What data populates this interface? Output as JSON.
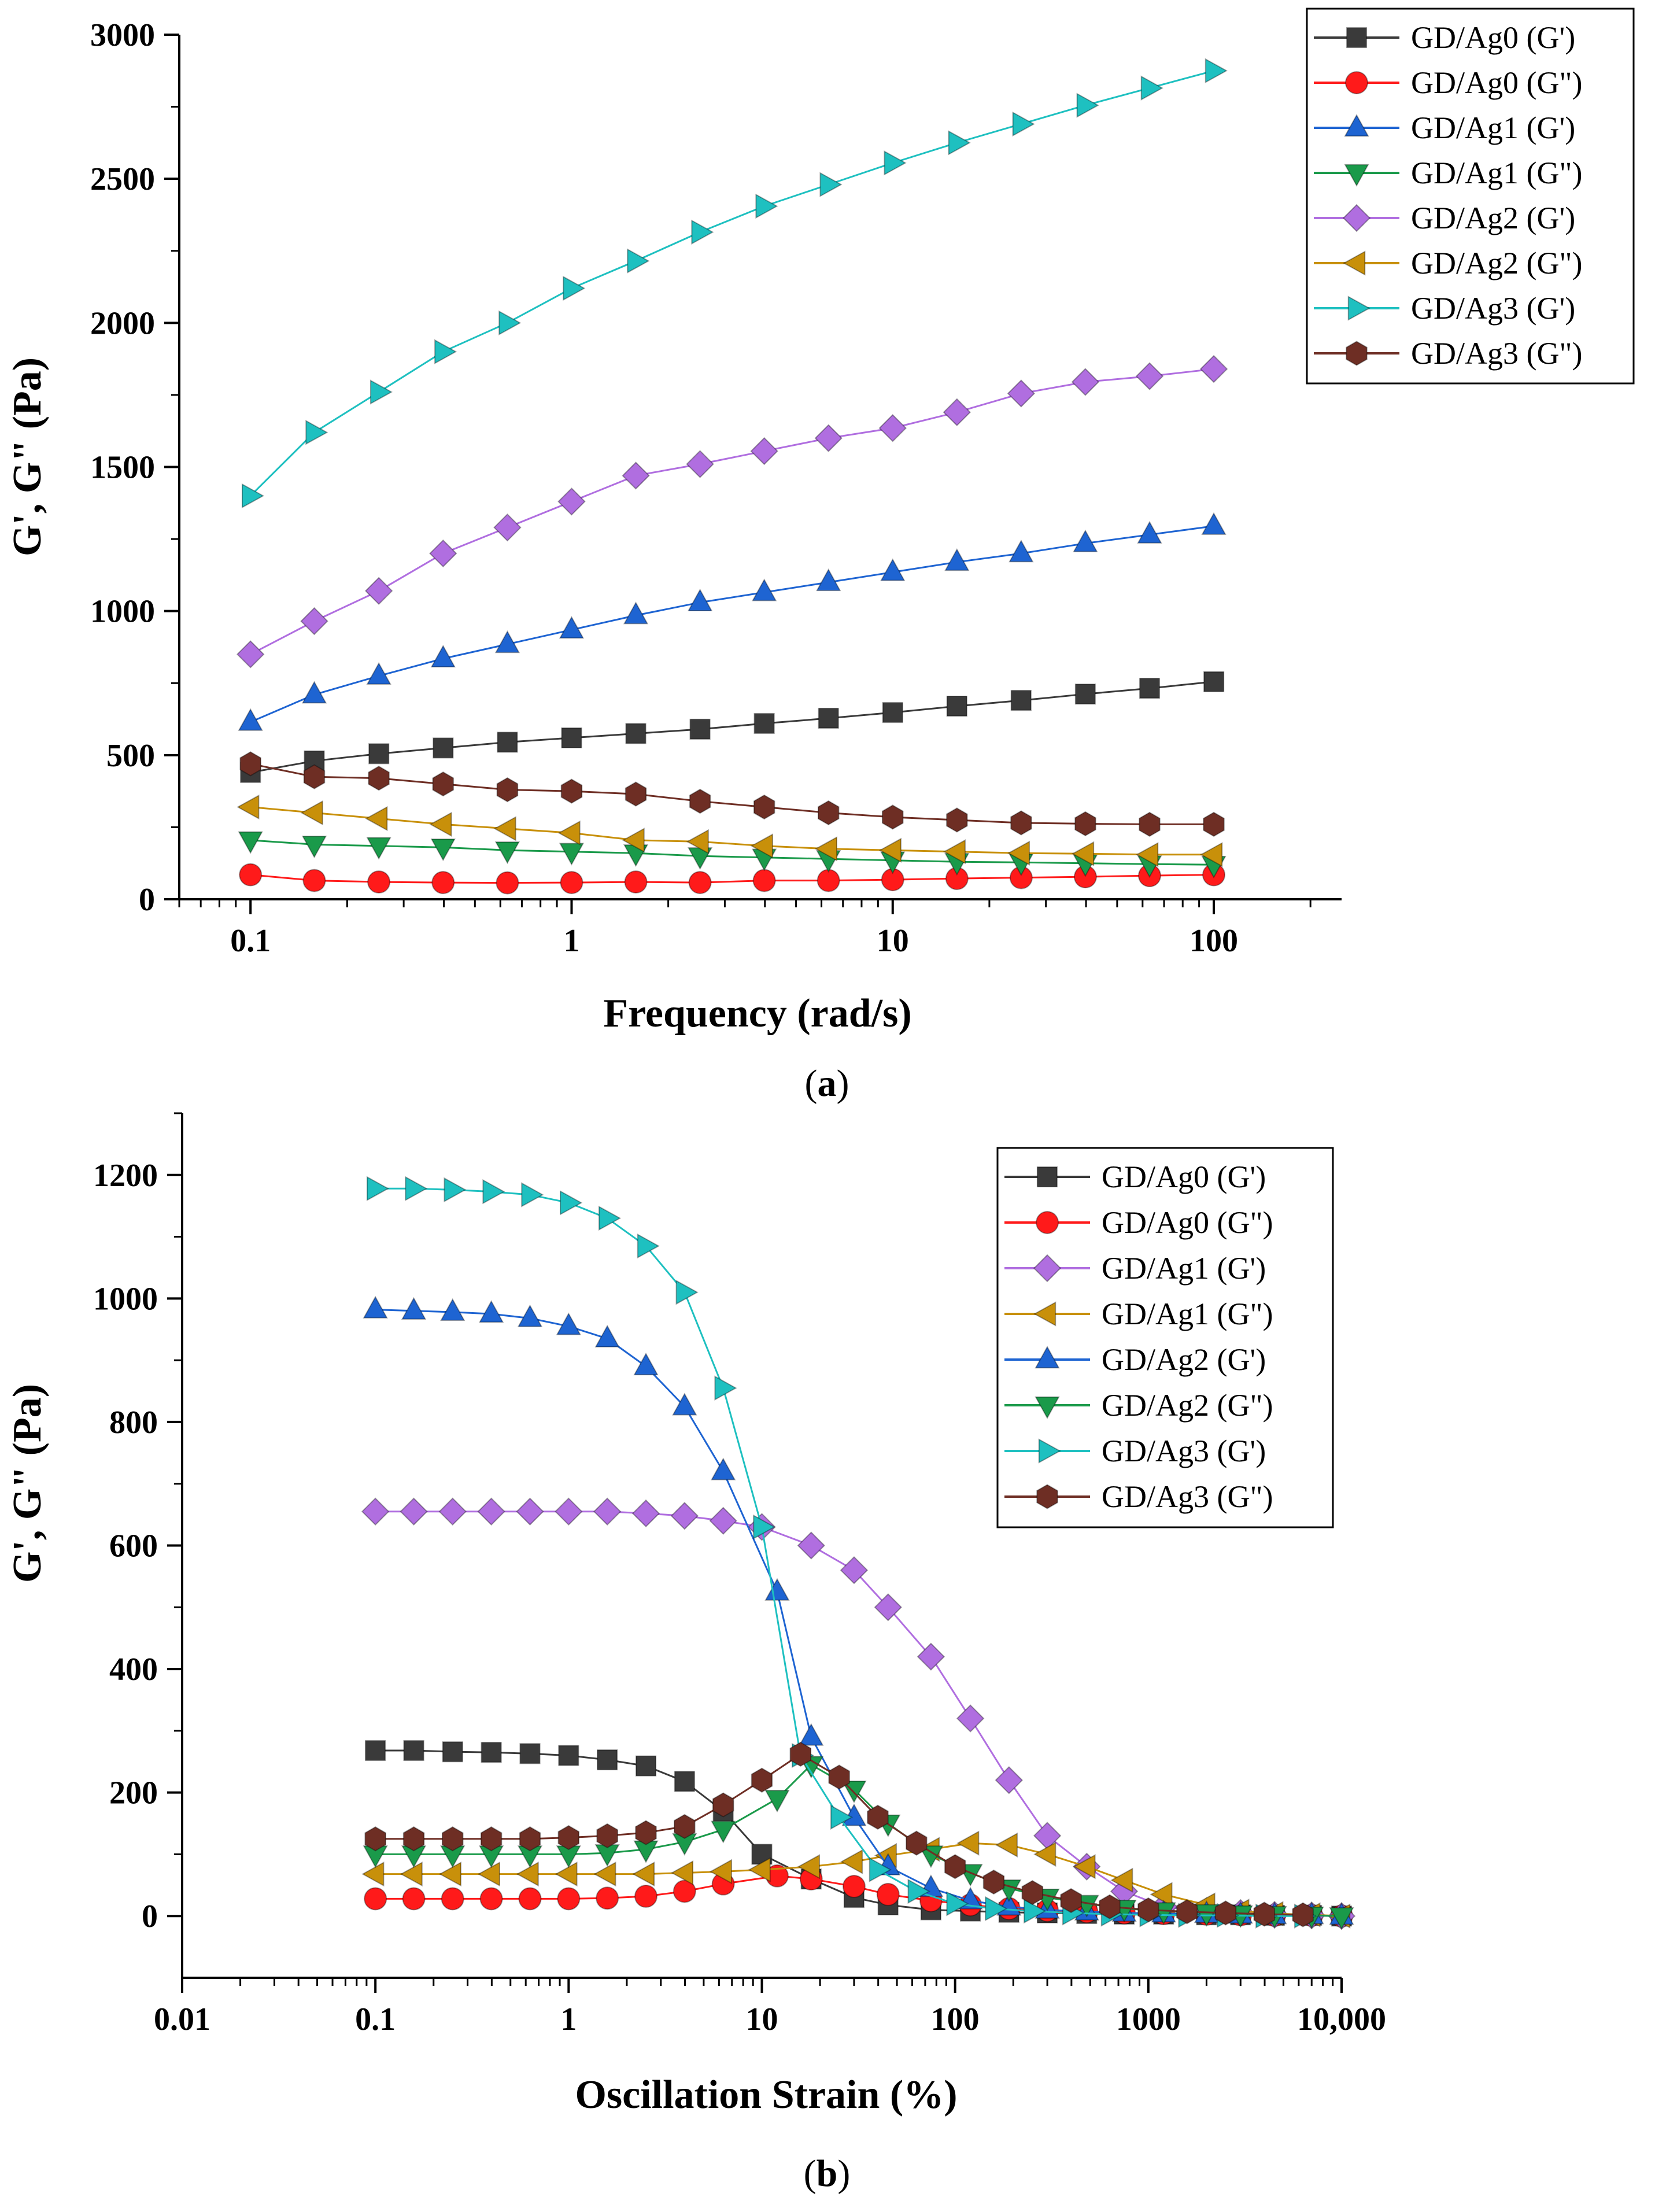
{
  "chart_data": [
    {
      "id": "a",
      "type": "line",
      "caption_letter": "a",
      "xscale": "log",
      "xlabel": "Frequency (rad/s)",
      "ylabel": "G', G\" (Pa)",
      "xlim": [
        0.06,
        250
      ],
      "ylim": [
        0,
        3000
      ],
      "xticks": [
        {
          "v": 0.1,
          "label": "0.1"
        },
        {
          "v": 1,
          "label": "1"
        },
        {
          "v": 10,
          "label": "10"
        },
        {
          "v": 100,
          "label": "100"
        }
      ],
      "yticks": [
        {
          "v": 0,
          "label": "0"
        },
        {
          "v": 500,
          "label": "500"
        },
        {
          "v": 1000,
          "label": "1000"
        },
        {
          "v": 1500,
          "label": "1500"
        },
        {
          "v": 2000,
          "label": "2000"
        },
        {
          "v": 2500,
          "label": "2500"
        },
        {
          "v": 3000,
          "label": "3000"
        }
      ],
      "legend_position": "top-right",
      "x": [
        0.1,
        0.158,
        0.251,
        0.398,
        0.631,
        1,
        1.585,
        2.512,
        3.981,
        6.31,
        10,
        15.85,
        25.12,
        39.81,
        63.1,
        100
      ],
      "series": [
        {
          "name": "GD/Ag0 (G')",
          "color": "#3a3a3a",
          "marker": "square",
          "values": [
            440,
            480,
            505,
            525,
            545,
            560,
            575,
            590,
            610,
            628,
            648,
            670,
            690,
            712,
            732,
            755
          ]
        },
        {
          "name": "GD/Ag0 (G\")",
          "color": "#ff1a1a",
          "marker": "circle",
          "values": [
            85,
            65,
            60,
            58,
            57,
            58,
            60,
            58,
            65,
            65,
            68,
            72,
            75,
            78,
            82,
            85
          ]
        },
        {
          "name": "GD/Ag1 (G')",
          "color": "#1e64d2",
          "marker": "triangle-up",
          "values": [
            615,
            710,
            775,
            835,
            885,
            935,
            985,
            1030,
            1065,
            1100,
            1135,
            1170,
            1200,
            1235,
            1265,
            1295
          ]
        },
        {
          "name": "GD/Ag1 (G\")",
          "color": "#1a9a4a",
          "marker": "triangle-down",
          "values": [
            205,
            190,
            185,
            180,
            170,
            165,
            160,
            150,
            145,
            140,
            135,
            130,
            128,
            125,
            122,
            120
          ]
        },
        {
          "name": "GD/Ag2 (G')",
          "color": "#b06ee0",
          "marker": "diamond",
          "values": [
            850,
            965,
            1070,
            1200,
            1290,
            1380,
            1470,
            1510,
            1555,
            1600,
            1635,
            1690,
            1755,
            1795,
            1815,
            1840
          ]
        },
        {
          "name": "GD/Ag2 (G\")",
          "color": "#c8900a",
          "marker": "triangle-left",
          "values": [
            320,
            300,
            280,
            260,
            245,
            230,
            205,
            200,
            185,
            175,
            170,
            165,
            160,
            158,
            155,
            155
          ]
        },
        {
          "name": "GD/Ag3 (G')",
          "color": "#1ec0c0",
          "marker": "triangle-right",
          "values": [
            1400,
            1620,
            1760,
            1900,
            2000,
            2120,
            2215,
            2315,
            2405,
            2480,
            2555,
            2625,
            2690,
            2755,
            2815,
            2875
          ]
        },
        {
          "name": "GD/Ag3 (G\")",
          "color": "#6e2e24",
          "marker": "hexagon",
          "values": [
            470,
            425,
            420,
            400,
            380,
            375,
            365,
            340,
            320,
            300,
            285,
            275,
            265,
            262,
            260,
            260
          ]
        }
      ]
    },
    {
      "id": "b",
      "type": "line",
      "caption_letter": "b",
      "xscale": "log",
      "xlabel": "Oscillation Strain (%)",
      "ylabel": "G', G\" (Pa)",
      "xlim": [
        0.01,
        10000
      ],
      "ylim": [
        -100,
        1300
      ],
      "xticks": [
        {
          "v": 0.01,
          "label": "0.01"
        },
        {
          "v": 0.1,
          "label": "0.1"
        },
        {
          "v": 1,
          "label": "1"
        },
        {
          "v": 10,
          "label": "10"
        },
        {
          "v": 100,
          "label": "100"
        },
        {
          "v": 1000,
          "label": "1000"
        },
        {
          "v": 10000,
          "label": "10,000"
        }
      ],
      "yticks": [
        {
          "v": 0,
          "label": "0"
        },
        {
          "v": 200,
          "label": "200"
        },
        {
          "v": 400,
          "label": "400"
        },
        {
          "v": 600,
          "label": "600"
        },
        {
          "v": 800,
          "label": "800"
        },
        {
          "v": 1000,
          "label": "1000"
        },
        {
          "v": 1200,
          "label": "1200"
        }
      ],
      "legend_position": "top-right",
      "x": [
        0.1,
        0.158,
        0.251,
        0.398,
        0.631,
        1,
        1.585,
        2.512,
        3.981,
        6.31,
        10,
        15.85,
        25.12,
        39.81,
        63.1,
        100,
        158.5,
        251.2,
        398.1,
        631,
        1000,
        1585,
        2512,
        3981,
        6310
      ],
      "series": [
        {
          "name": "GD/Ag0 (G')",
          "color": "#3a3a3a",
          "marker": "square",
          "x": [
            0.1,
            0.158,
            0.251,
            0.398,
            0.631,
            1,
            1.585,
            2.512,
            3.981,
            6.31,
            10,
            18,
            30,
            45,
            75,
            120,
            190,
            300,
            480,
            750,
            1200,
            2000,
            3000,
            4500,
            7000,
            10000
          ],
          "values": [
            268,
            268,
            266,
            265,
            263,
            260,
            253,
            243,
            218,
            170,
            100,
            60,
            30,
            18,
            10,
            8,
            6,
            5,
            4,
            3,
            3,
            2,
            2,
            1,
            1,
            0
          ]
        },
        {
          "name": "GD/Ag0 (G\")",
          "color": "#ff1a1a",
          "marker": "circle",
          "x": [
            0.1,
            0.158,
            0.251,
            0.398,
            0.631,
            1,
            1.585,
            2.512,
            3.981,
            6.31,
            12,
            18,
            30,
            45,
            75,
            120,
            190,
            300,
            480,
            750,
            1200,
            2000,
            3000,
            4500,
            7000,
            10000
          ],
          "values": [
            28,
            28,
            28,
            28,
            28,
            28,
            29,
            32,
            40,
            52,
            65,
            60,
            48,
            35,
            25,
            18,
            12,
            9,
            7,
            5,
            4,
            3,
            2,
            1,
            1,
            0
          ]
        },
        {
          "name": "GD/Ag1 (G')",
          "color": "#b06ee0",
          "marker": "diamond",
          "x": [
            0.1,
            0.158,
            0.251,
            0.398,
            0.631,
            1,
            1.585,
            2.512,
            3.981,
            6.31,
            10,
            18,
            30,
            45,
            75,
            120,
            190,
            300,
            480,
            750,
            1200,
            2000,
            3000,
            4500,
            7000,
            10000
          ],
          "values": [
            655,
            655,
            655,
            655,
            655,
            655,
            655,
            652,
            648,
            640,
            630,
            600,
            560,
            500,
            420,
            320,
            220,
            130,
            80,
            40,
            15,
            8,
            5,
            2,
            1,
            0
          ]
        },
        {
          "name": "GD/Ag1 (G\")",
          "color": "#c8900a",
          "marker": "triangle-left",
          "x": [
            0.1,
            0.158,
            0.251,
            0.398,
            0.631,
            1,
            1.585,
            2.512,
            3.981,
            6.31,
            10,
            18,
            30,
            45,
            75,
            120,
            190,
            300,
            480,
            750,
            1200,
            2000,
            3000,
            4500,
            7000,
            10000
          ],
          "values": [
            68,
            68,
            68,
            68,
            68,
            68,
            68,
            68,
            70,
            72,
            75,
            80,
            88,
            98,
            108,
            118,
            115,
            100,
            80,
            58,
            35,
            18,
            8,
            4,
            2,
            0
          ]
        },
        {
          "name": "GD/Ag2 (G')",
          "color": "#1e64d2",
          "marker": "triangle-up",
          "x": [
            0.1,
            0.158,
            0.251,
            0.398,
            0.631,
            1,
            1.585,
            2.512,
            3.981,
            6.31,
            12,
            18,
            30,
            45,
            75,
            120,
            190,
            300,
            480,
            750,
            1200,
            2000,
            3000,
            4500,
            7000,
            10000
          ],
          "values": [
            982,
            980,
            978,
            975,
            968,
            955,
            935,
            890,
            825,
            720,
            525,
            290,
            160,
            80,
            45,
            25,
            15,
            10,
            7,
            5,
            4,
            3,
            2,
            1,
            1,
            0
          ]
        },
        {
          "name": "GD/Ag2 (G\")",
          "color": "#1a9a4a",
          "marker": "triangle-down",
          "x": [
            0.1,
            0.158,
            0.251,
            0.398,
            0.631,
            1,
            1.585,
            2.512,
            3.981,
            6.31,
            12,
            18,
            30,
            45,
            75,
            120,
            190,
            300,
            480,
            750,
            1200,
            2000,
            3000,
            4500,
            7000,
            10000
          ],
          "values": [
            100,
            100,
            100,
            100,
            100,
            100,
            102,
            108,
            120,
            140,
            190,
            245,
            205,
            150,
            100,
            70,
            45,
            30,
            20,
            12,
            8,
            5,
            3,
            2,
            1,
            0
          ]
        },
        {
          "name": "GD/Ag3 (G')",
          "color": "#1ec0c0",
          "marker": "triangle-right",
          "x": [
            0.1,
            0.158,
            0.251,
            0.398,
            0.631,
            1,
            1.585,
            2.512,
            3.981,
            6.31,
            10,
            15.85,
            25.12,
            39.81,
            63.1,
            100,
            158.5,
            251.2,
            398.1,
            631,
            1000,
            1585,
            2512,
            3981,
            6310
          ],
          "values": [
            1178,
            1178,
            1176,
            1173,
            1168,
            1155,
            1130,
            1085,
            1010,
            855,
            630,
            260,
            160,
            75,
            40,
            20,
            12,
            8,
            5,
            3,
            2,
            1,
            1,
            0,
            0
          ]
        },
        {
          "name": "GD/Ag3 (G\")",
          "color": "#6e2e24",
          "marker": "hexagon",
          "x": [
            0.1,
            0.158,
            0.251,
            0.398,
            0.631,
            1,
            1.585,
            2.512,
            3.981,
            6.31,
            10,
            15.85,
            25.12,
            39.81,
            63.1,
            100,
            158.5,
            251.2,
            398.1,
            631,
            1000,
            1585,
            2512,
            3981,
            6310
          ],
          "values": [
            125,
            125,
            125,
            125,
            125,
            127,
            130,
            135,
            145,
            180,
            220,
            262,
            225,
            160,
            118,
            80,
            55,
            38,
            25,
            15,
            10,
            7,
            5,
            3,
            2
          ]
        }
      ]
    }
  ]
}
